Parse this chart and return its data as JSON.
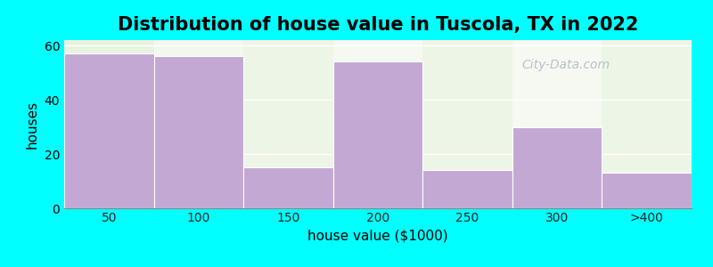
{
  "title": "Distribution of house value in Tuscola, TX in 2022",
  "xlabel": "house value ($1000)",
  "ylabel": "houses",
  "categories": [
    "50",
    "100",
    "150",
    "200",
    "250",
    "300",
    ">400"
  ],
  "values": [
    57,
    56,
    15,
    54,
    14,
    30,
    13
  ],
  "bar_color": "#C4A8D4",
  "ylim": [
    0,
    62
  ],
  "yticks": [
    0,
    20,
    40,
    60
  ],
  "background_color": "#00FFFF",
  "col_bg_even": "#EFF5E8",
  "col_bg_odd": "#F8FCF5",
  "title_fontsize": 15,
  "axis_label_fontsize": 11,
  "tick_fontsize": 10,
  "watermark_text": "City-Data.com"
}
